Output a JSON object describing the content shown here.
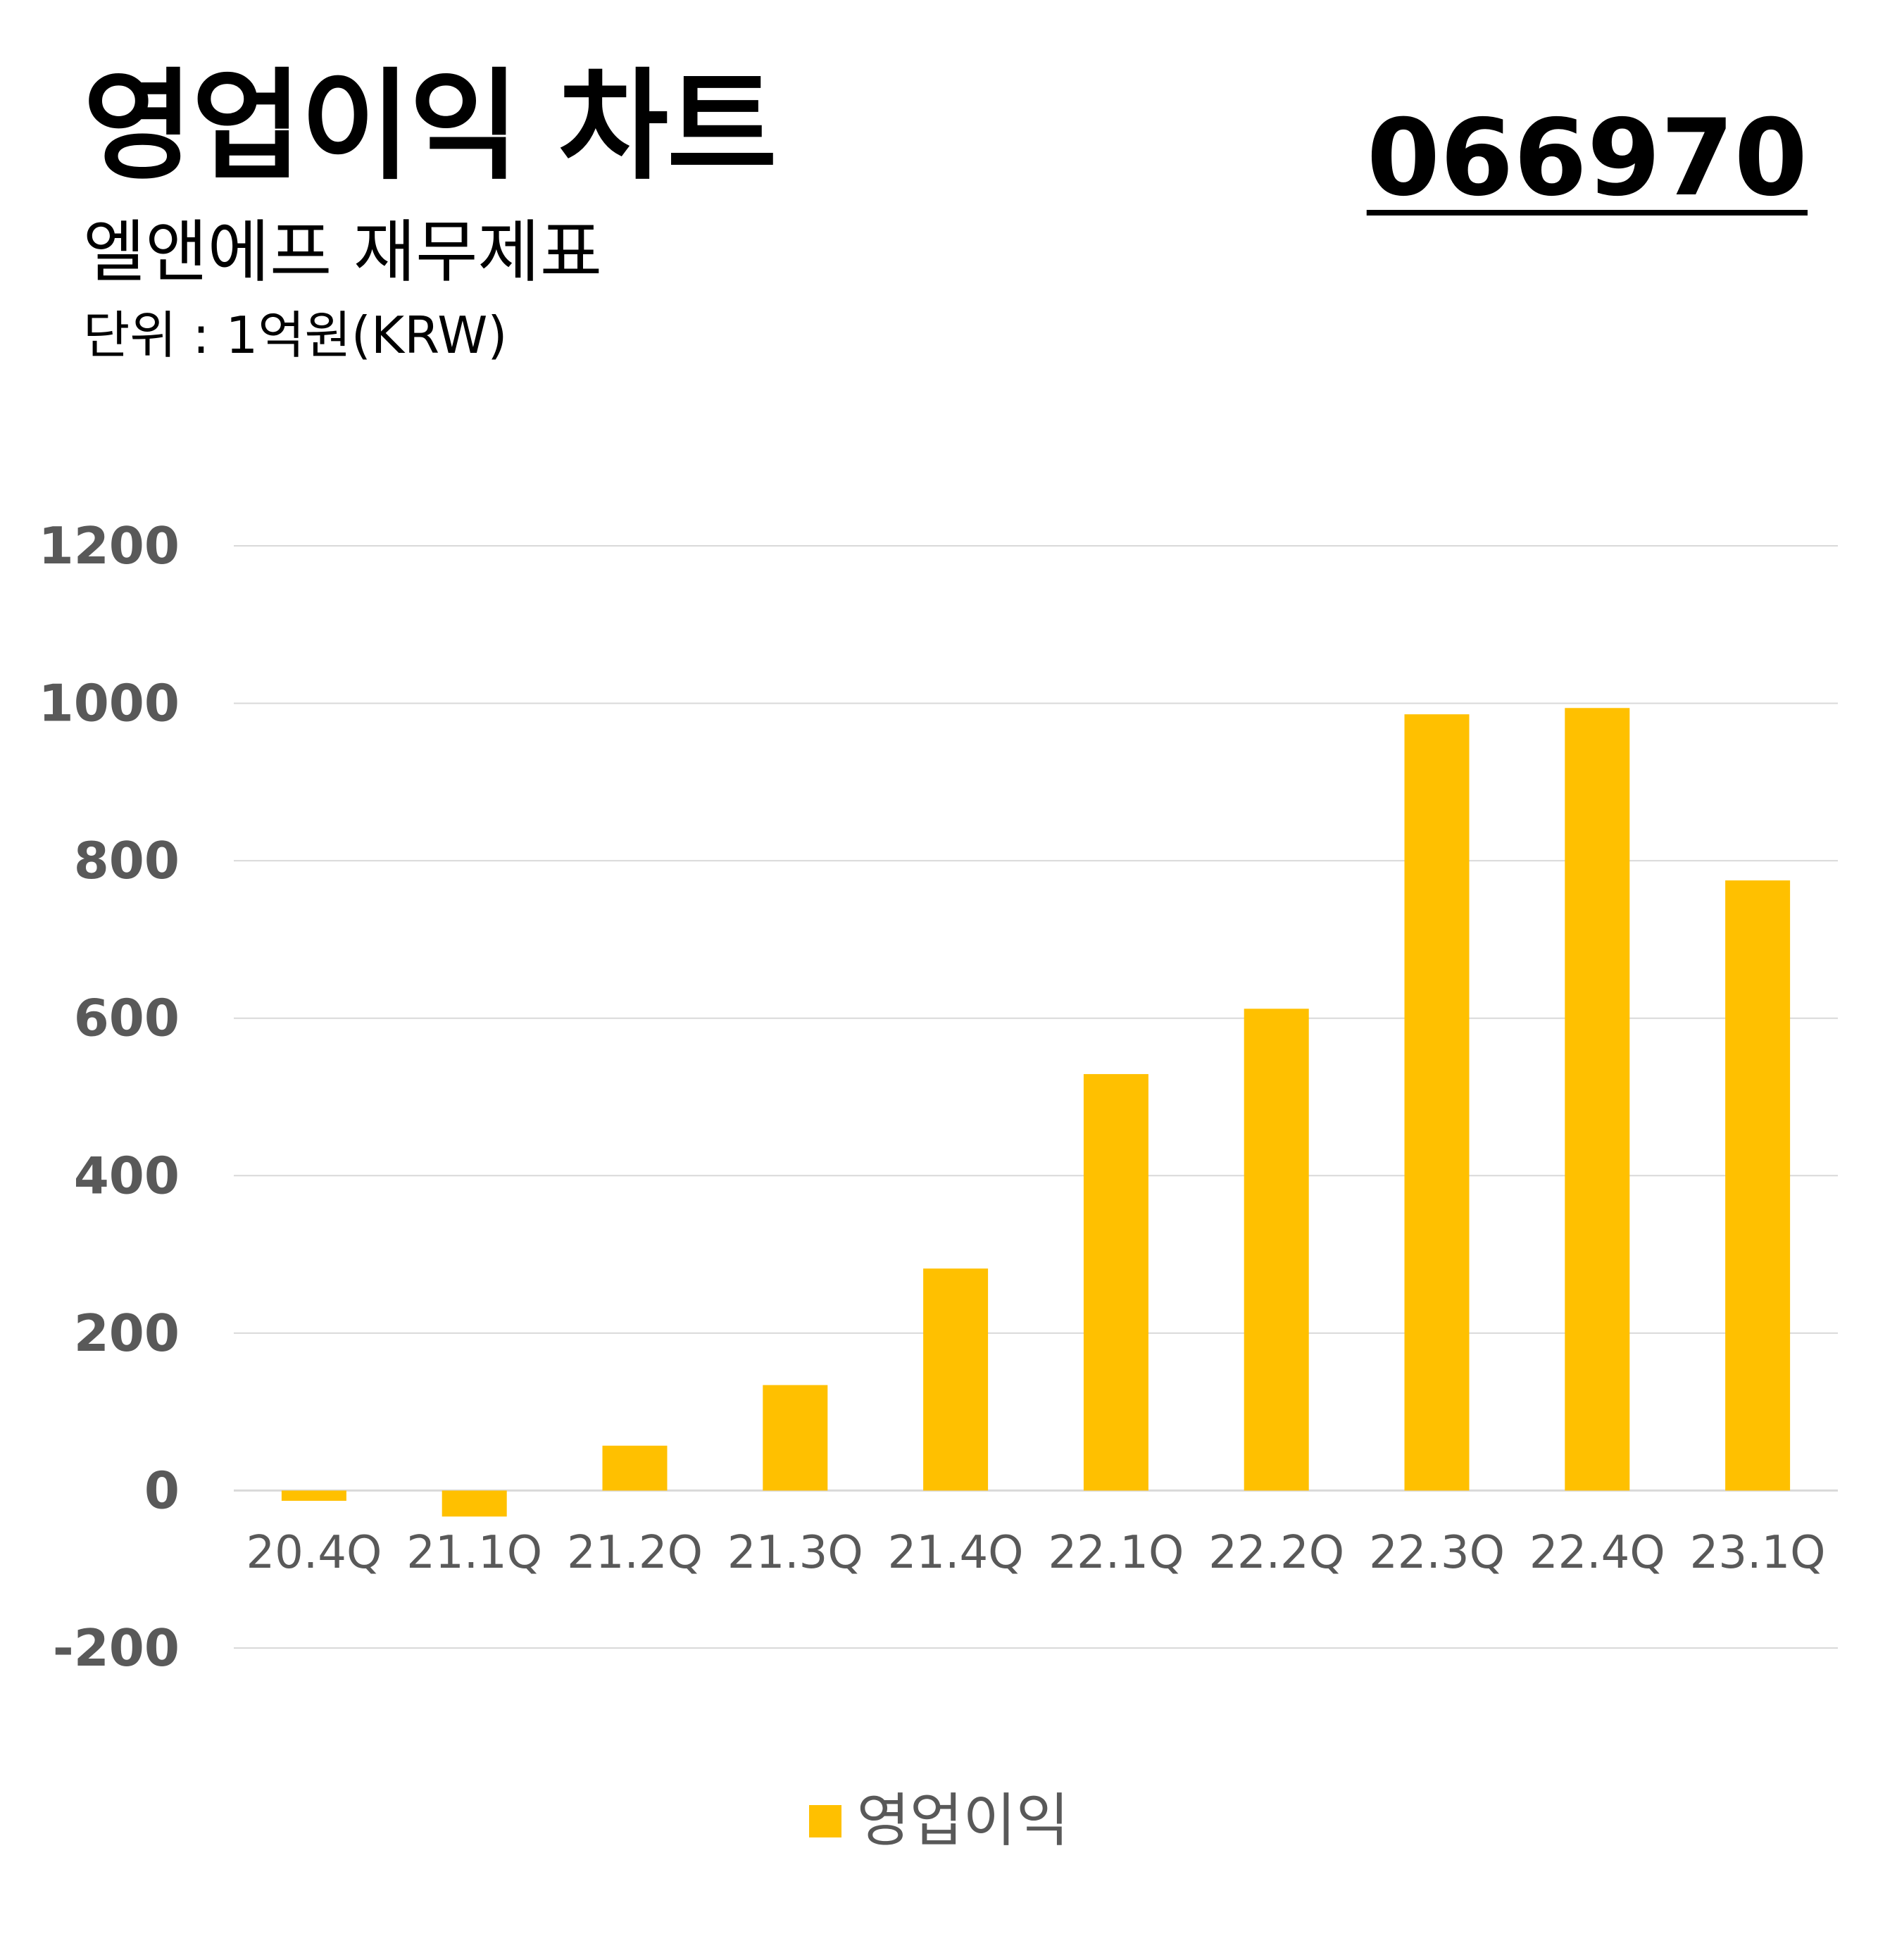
{
  "header": {
    "title": "영업이익 차트",
    "subtitle": "엘앤에프 재무제표",
    "unit": "단위 : 1억원(KRW)",
    "ticker": "066970"
  },
  "colors": {
    "bar": "#FFC000",
    "grid": "#D9D9D9",
    "axis_text": "#595959"
  },
  "chart_data": {
    "type": "bar",
    "categories": [
      "20.4Q",
      "21.1Q",
      "21.2Q",
      "21.3Q",
      "21.4Q",
      "22.1Q",
      "22.2Q",
      "22.3Q",
      "22.4Q",
      "23.1Q"
    ],
    "series": [
      {
        "name": "영업이익",
        "values": [
          -13,
          -33,
          57,
          134,
          282,
          529,
          612,
          986,
          994,
          775
        ]
      }
    ],
    "ylim": [
      -200,
      1200
    ],
    "yticks": [
      "-200",
      "0",
      "200",
      "400",
      "600",
      "800",
      "1000",
      "1200"
    ],
    "grid": true,
    "legend": "bottom"
  }
}
